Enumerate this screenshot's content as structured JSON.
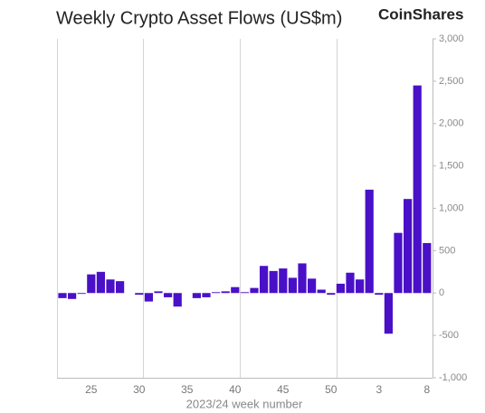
{
  "brand": "CoinShares",
  "chart_data": {
    "type": "bar",
    "title": "Weekly Crypto Asset Flows (US$m)",
    "x_label": "2023/24 week number",
    "categories": [
      null,
      null,
      null,
      "25",
      null,
      null,
      null,
      null,
      "30",
      null,
      null,
      null,
      null,
      "35",
      null,
      null,
      null,
      null,
      "40",
      null,
      null,
      null,
      null,
      "45",
      null,
      null,
      null,
      null,
      "50",
      null,
      null,
      null,
      null,
      "3",
      null,
      null,
      null,
      null,
      "8"
    ],
    "values": [
      -60,
      -70,
      -10,
      220,
      250,
      160,
      140,
      0,
      -20,
      -100,
      20,
      -50,
      -160,
      0,
      -60,
      -50,
      10,
      20,
      70,
      10,
      60,
      320,
      260,
      290,
      180,
      350,
      170,
      40,
      -20,
      110,
      240,
      160,
      1220,
      -20,
      -480,
      710,
      1110,
      2450,
      590
    ],
    "color": "#4a10c8",
    "ylim": [
      -1000,
      3000
    ],
    "yticks": [
      {
        "value": -1000,
        "label": "-1,000"
      },
      -500,
      0,
      500,
      {
        "value": 1000,
        "label": "1,000"
      },
      {
        "value": 1500,
        "label": "1,500"
      },
      {
        "value": 2000,
        "label": "2,000"
      },
      {
        "value": 2500,
        "label": "2,500"
      },
      {
        "value": 3000,
        "label": "3,000"
      }
    ],
    "y_axis": "right"
  }
}
